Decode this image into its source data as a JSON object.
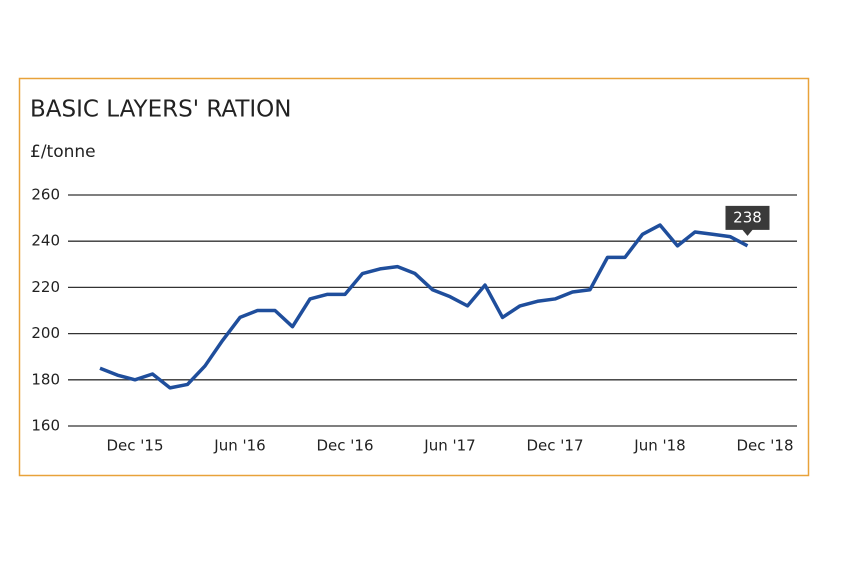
{
  "chart_data": {
    "type": "line",
    "title": "BASIC LAYERS' RATION",
    "y_label": "£/tonne",
    "categories": [
      null,
      null,
      "Dec '15",
      null,
      null,
      null,
      null,
      null,
      "Jun '16",
      null,
      null,
      null,
      null,
      null,
      "Dec '16",
      null,
      null,
      null,
      null,
      null,
      "Jun '17",
      null,
      null,
      null,
      null,
      null,
      "Dec '17",
      null,
      null,
      null,
      null,
      null,
      "Jun '18",
      null,
      null,
      null,
      null,
      null,
      "Dec '18"
    ],
    "values": [
      185,
      182,
      180,
      182.5,
      176.5,
      178,
      186,
      197,
      207,
      210,
      210,
      203,
      215,
      217,
      217,
      226,
      228,
      229,
      226,
      219,
      216,
      212,
      221,
      207,
      212,
      214,
      215,
      218,
      219,
      233,
      233,
      243,
      247,
      238,
      244,
      243,
      242,
      238,
      null
    ],
    "color": "#1f4e9c",
    "ylim": [
      160,
      260
    ],
    "yticks": [
      160,
      180,
      200,
      220,
      240,
      260
    ],
    "grid": true
  }
}
